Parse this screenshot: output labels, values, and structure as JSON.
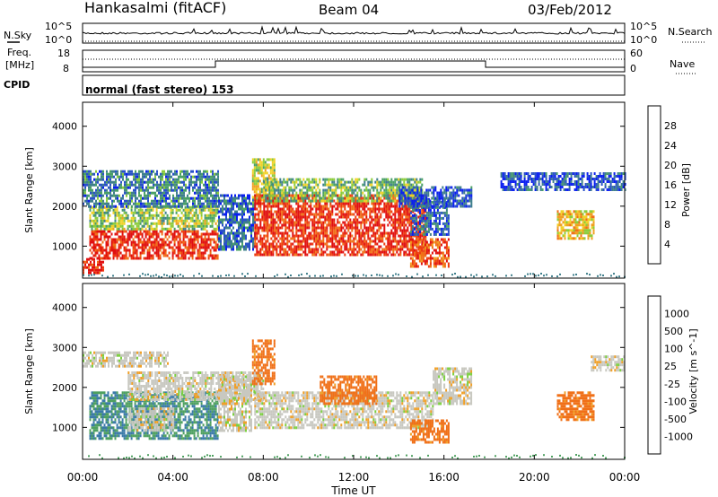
{
  "header": {
    "station": "Hankasalmi (fitACF)",
    "beam": "Beam 04",
    "date": "03/Feb/2012",
    "cpid_label": "CPID",
    "cpid_text": "normal (fast stereo) 153"
  },
  "status_panels": {
    "nsky": {
      "label": "N.Sky",
      "right_label": "N.Search",
      "ticks": [
        "10^5",
        "10^0"
      ]
    },
    "freq": {
      "label_lines": [
        "Freq.",
        "[MHz]"
      ],
      "left_ticks": [
        "18",
        "8"
      ],
      "right_ticks": [
        "60",
        "0"
      ],
      "right_label": "Nave"
    }
  },
  "chart_data": [
    {
      "type": "heatmap",
      "title": "",
      "xlabel": "",
      "ylabel": "Slant Range [km]",
      "x_range_hours": [
        0,
        24
      ],
      "ylim": [
        200,
        4600
      ],
      "yticks": [
        1000,
        2000,
        3000,
        4000
      ],
      "colorbar": {
        "label": "Power [dB]",
        "ticks": [
          4,
          8,
          12,
          16,
          20,
          24,
          28
        ],
        "range": [
          0,
          32
        ],
        "colors": [
          "#0a1ef0",
          "#2a52c8",
          "#3f7f8c",
          "#4aa066",
          "#8ccc3c",
          "#f0d228",
          "#f0a020",
          "#f07018",
          "#ee3c10",
          "#e01010"
        ]
      },
      "echo_regions": [
        {
          "t": [
            0.0,
            0.9
          ],
          "r": [
            300,
            700
          ],
          "level": 0.9
        },
        {
          "t": [
            0.3,
            6.0
          ],
          "r": [
            700,
            1400
          ],
          "level": 0.9
        },
        {
          "t": [
            0.3,
            6.0
          ],
          "r": [
            1400,
            2000
          ],
          "level": 0.45
        },
        {
          "t": [
            0.0,
            6.0
          ],
          "r": [
            2000,
            2900
          ],
          "level": 0.25
        },
        {
          "t": [
            6.0,
            7.6
          ],
          "r": [
            900,
            2300
          ],
          "level": 0.2
        },
        {
          "t": [
            7.5,
            8.5
          ],
          "r": [
            2100,
            3200
          ],
          "level": 0.5
        },
        {
          "t": [
            7.6,
            15.2
          ],
          "r": [
            800,
            2300
          ],
          "level": 0.88
        },
        {
          "t": [
            8.0,
            15.0
          ],
          "r": [
            2100,
            2700
          ],
          "level": 0.4
        },
        {
          "t": [
            14.5,
            16.2
          ],
          "r": [
            500,
            1200
          ],
          "level": 0.82
        },
        {
          "t": [
            14.5,
            16.2
          ],
          "r": [
            1300,
            2200
          ],
          "level": 0.2
        },
        {
          "t": [
            14.0,
            17.2
          ],
          "r": [
            2000,
            2500
          ],
          "level": 0.15
        },
        {
          "t": [
            21.0,
            22.6
          ],
          "r": [
            1200,
            1900
          ],
          "level": 0.6
        },
        {
          "t": [
            18.5,
            24.0
          ],
          "r": [
            2400,
            2850
          ],
          "level": 0.15
        }
      ]
    },
    {
      "type": "heatmap",
      "title": "",
      "xlabel": "Time UT",
      "ylabel": "Slant Range [km]",
      "x_range_hours": [
        0,
        24
      ],
      "xticks": [
        "00:00",
        "04:00",
        "08:00",
        "12:00",
        "16:00",
        "20:00",
        "00:00"
      ],
      "ylim": [
        200,
        4600
      ],
      "yticks": [
        1000,
        2000,
        3000,
        4000
      ],
      "colorbar": {
        "label": "Velocity [m s^-1]",
        "ticks": [
          1000,
          500,
          100,
          25,
          -25,
          -100,
          -500,
          -1000
        ],
        "colors": [
          "#2040c8",
          "#3a7aa8",
          "#4ea060",
          "#7cd040",
          "#c8c8c0",
          "#f0a028",
          "#f07018",
          "#e83010",
          "#e01010"
        ]
      },
      "echo_regions": [
        {
          "t": [
            0.3,
            6.0
          ],
          "r": [
            700,
            1900
          ],
          "value": 500
        },
        {
          "t": [
            2.0,
            4.0
          ],
          "r": [
            900,
            1500
          ],
          "value": 0
        },
        {
          "t": [
            0.0,
            3.8
          ],
          "r": [
            2500,
            2900
          ],
          "value": 0
        },
        {
          "t": [
            2.0,
            8.0
          ],
          "r": [
            1700,
            2400
          ],
          "value": 0
        },
        {
          "t": [
            6.0,
            7.5
          ],
          "r": [
            900,
            2300
          ],
          "value": 0
        },
        {
          "t": [
            7.5,
            8.5
          ],
          "r": [
            2100,
            3200
          ],
          "value": -150
        },
        {
          "t": [
            7.6,
            15.5
          ],
          "r": [
            1000,
            1900
          ],
          "value": 0
        },
        {
          "t": [
            10.5,
            13.0
          ],
          "r": [
            1600,
            2300
          ],
          "value": -200
        },
        {
          "t": [
            14.5,
            16.2
          ],
          "r": [
            600,
            1200
          ],
          "value": -300
        },
        {
          "t": [
            15.5,
            17.2
          ],
          "r": [
            1600,
            2500
          ],
          "value": 0
        },
        {
          "t": [
            21.0,
            22.6
          ],
          "r": [
            1200,
            1900
          ],
          "value": -200
        },
        {
          "t": [
            22.5,
            24.0
          ],
          "r": [
            2450,
            2800
          ],
          "value": 0
        }
      ]
    }
  ]
}
